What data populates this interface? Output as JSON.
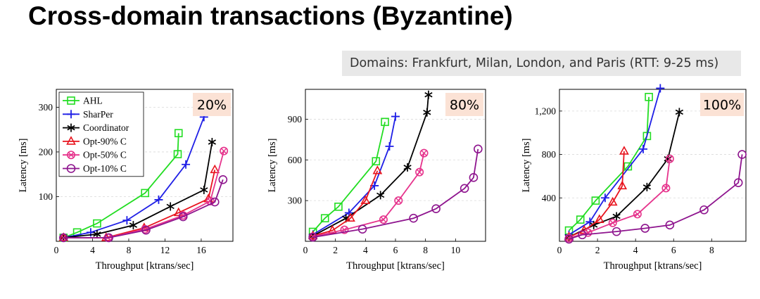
{
  "slide": {
    "title": "Cross-domain transactions (Byzantine)",
    "domains_note": "Domains: Frankfurt, Milan, London, and Paris (RTT: 9-25 ms)"
  },
  "colors": {
    "AHL": "#22dd22",
    "SharPer": "#1f1fe6",
    "Coordinator": "#000000",
    "Opt-90% C": "#e8141e",
    "Opt-50% C": "#e6338c",
    "Opt-10% C": "#8e148e",
    "percent_badge": "#fbe2d5"
  },
  "chart_data": [
    {
      "type": "line",
      "badge": "20%",
      "xlabel": "Throughput [ktrans/sec]",
      "ylabel": "Latency [ms]",
      "xlim": [
        0,
        19.5
      ],
      "ylim": [
        0,
        340
      ],
      "xticks": [
        0,
        4,
        8,
        12,
        16
      ],
      "yticks": [
        100,
        200,
        300
      ],
      "ytick_labels": [
        "100",
        "200",
        "300"
      ],
      "legend": "top-left",
      "series": [
        {
          "name": "AHL",
          "marker": "square",
          "x": [
            0.8,
            2.3,
            4.5,
            9.8,
            13.4,
            13.5
          ],
          "y": [
            8,
            20,
            40,
            108,
            195,
            242
          ]
        },
        {
          "name": "SharPer",
          "marker": "plus",
          "x": [
            0.8,
            3.8,
            7.8,
            11.3,
            14.3,
            16.3
          ],
          "y": [
            8,
            20,
            47,
            93,
            172,
            278
          ]
        },
        {
          "name": "Coordinator",
          "marker": "star",
          "x": [
            0.8,
            4.5,
            8.5,
            12.6,
            16.3,
            17.2
          ],
          "y": [
            8,
            16,
            36,
            78,
            115,
            222
          ]
        },
        {
          "name": "Opt-90% C",
          "marker": "triangle",
          "x": [
            0.8,
            5.5,
            9.7,
            13.5,
            16.8,
            17.5
          ],
          "y": [
            8,
            8,
            30,
            64,
            95,
            160
          ]
        },
        {
          "name": "Opt-50% C",
          "marker": "circle-x",
          "x": [
            0.8,
            5.7,
            9.8,
            14.0,
            17.0,
            18.5
          ],
          "y": [
            8,
            8,
            27,
            58,
            90,
            202
          ]
        },
        {
          "name": "Opt-10% C",
          "marker": "circle",
          "x": [
            0.8,
            5.8,
            9.9,
            14.0,
            17.5,
            18.4
          ],
          "y": [
            8,
            8,
            25,
            55,
            88,
            138
          ]
        }
      ]
    },
    {
      "type": "line",
      "badge": "80%",
      "xlabel": "Throughput [ktrans/sec]",
      "ylabel": "Latency [ms]",
      "xlim": [
        0,
        12
      ],
      "ylim": [
        0,
        1120
      ],
      "xticks": [
        0,
        2,
        4,
        6,
        8,
        10
      ],
      "yticks": [
        300,
        600,
        900
      ],
      "ytick_labels": [
        "300",
        "600",
        "900"
      ],
      "series": [
        {
          "name": "AHL",
          "marker": "square",
          "x": [
            0.5,
            1.3,
            2.2,
            4.7,
            5.3
          ],
          "y": [
            70,
            170,
            255,
            590,
            880
          ]
        },
        {
          "name": "SharPer",
          "marker": "plus",
          "x": [
            0.5,
            2.9,
            4.6,
            5.6,
            6.0
          ],
          "y": [
            50,
            210,
            410,
            700,
            920
          ]
        },
        {
          "name": "Coordinator",
          "marker": "star",
          "x": [
            0.5,
            2.7,
            5.0,
            6.8,
            8.1,
            8.2
          ],
          "y": [
            40,
            170,
            340,
            545,
            950,
            1080
          ]
        },
        {
          "name": "Opt-90% C",
          "marker": "triangle",
          "x": [
            0.5,
            1.8,
            3.0,
            4.0,
            4.8
          ],
          "y": [
            40,
            80,
            170,
            300,
            520
          ]
        },
        {
          "name": "Opt-50% C",
          "marker": "circle-x",
          "x": [
            0.5,
            2.6,
            5.2,
            6.2,
            7.6,
            7.9
          ],
          "y": [
            35,
            85,
            160,
            300,
            510,
            650
          ]
        },
        {
          "name": "Opt-10% C",
          "marker": "circle",
          "x": [
            0.5,
            3.8,
            7.2,
            8.7,
            10.6,
            11.2,
            11.5
          ],
          "y": [
            30,
            90,
            170,
            240,
            390,
            470,
            680
          ]
        }
      ]
    },
    {
      "type": "line",
      "badge": "100%",
      "xlabel": "Throughput [ktrans/sec]",
      "ylabel": "Latency [ms]",
      "xlim": [
        0,
        9.8
      ],
      "ylim": [
        0,
        1400
      ],
      "xticks": [
        0,
        2,
        4,
        6,
        8
      ],
      "yticks": [
        400,
        800,
        1200
      ],
      "ytick_labels": [
        "400",
        "800",
        "1,200"
      ],
      "series": [
        {
          "name": "AHL",
          "marker": "square",
          "x": [
            0.5,
            1.1,
            1.9,
            3.6,
            4.6,
            4.7
          ],
          "y": [
            100,
            200,
            375,
            690,
            970,
            1330
          ]
        },
        {
          "name": "SharPer",
          "marker": "plus",
          "x": [
            0.5,
            1.6,
            2.4,
            4.4,
            5.3
          ],
          "y": [
            60,
            180,
            400,
            850,
            1410
          ]
        },
        {
          "name": "Coordinator",
          "marker": "star",
          "x": [
            0.5,
            1.8,
            3.0,
            4.6,
            5.7,
            6.3
          ],
          "y": [
            40,
            150,
            230,
            500,
            760,
            1190
          ]
        },
        {
          "name": "Opt-90% C",
          "marker": "triangle",
          "x": [
            0.5,
            1.3,
            2.1,
            2.8,
            3.3,
            3.4
          ],
          "y": [
            40,
            100,
            200,
            360,
            510,
            830
          ]
        },
        {
          "name": "Opt-50% C",
          "marker": "circle-x",
          "x": [
            0.5,
            1.5,
            2.8,
            4.1,
            5.6,
            5.8
          ],
          "y": [
            30,
            80,
            170,
            250,
            490,
            760
          ]
        },
        {
          "name": "Opt-10% C",
          "marker": "circle",
          "x": [
            0.5,
            1.2,
            3.0,
            4.5,
            5.8,
            7.6,
            9.4,
            9.6
          ],
          "y": [
            20,
            60,
            90,
            120,
            150,
            290,
            540,
            800
          ]
        }
      ]
    }
  ]
}
